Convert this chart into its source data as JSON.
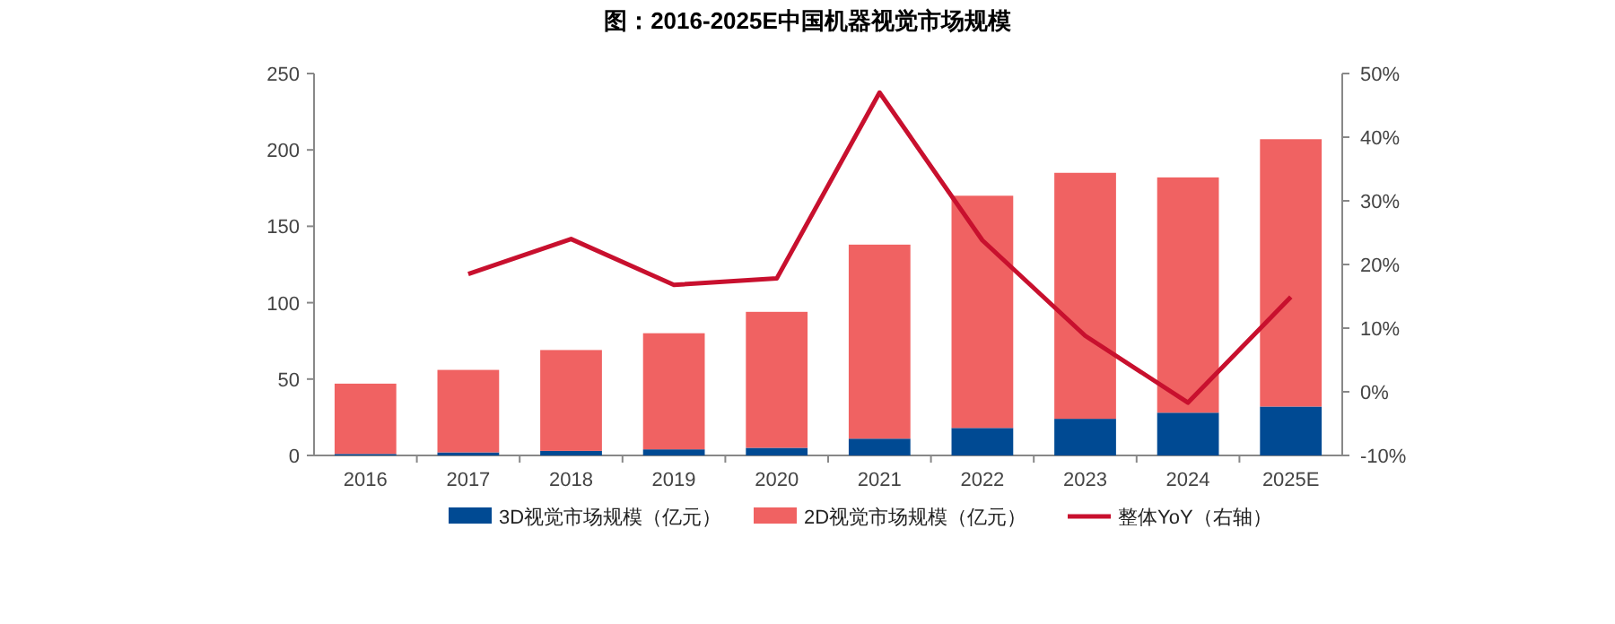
{
  "chart_data": {
    "type": "bar",
    "title": "图：2016-2025E中国机器视觉市场规模",
    "categories": [
      "2016",
      "2017",
      "2018",
      "2019",
      "2020",
      "2021",
      "2022",
      "2023",
      "2024",
      "2025E"
    ],
    "stacked": true,
    "series": [
      {
        "name": "3D视觉市场规模（亿元）",
        "color": "#004a93",
        "values": [
          1,
          2,
          3,
          4,
          5,
          11,
          18,
          24,
          28,
          32
        ]
      },
      {
        "name": "2D视觉市场规模（亿元）",
        "color": "#f06262",
        "values": [
          46,
          54,
          66,
          76,
          89,
          127,
          152,
          161,
          154,
          175
        ]
      },
      {
        "name": "整体YoY（右轴）",
        "type": "line",
        "axis": "y2",
        "color": "#c8102e",
        "values": [
          null,
          18.5,
          24,
          16.8,
          17.8,
          47,
          23.8,
          8.8,
          -1.7,
          14.9
        ]
      }
    ],
    "ylim": [
      0,
      250
    ],
    "yticks": [
      0,
      50,
      100,
      150,
      200,
      250
    ],
    "y2lim": [
      -10,
      50
    ],
    "y2ticks": [
      {
        "value": -10,
        "label": "-10%"
      },
      {
        "value": 0,
        "label": "0%"
      },
      {
        "value": 10,
        "label": "10%"
      },
      {
        "value": 20,
        "label": "20%"
      },
      {
        "value": 30,
        "label": "30%"
      },
      {
        "value": 40,
        "label": "40%"
      },
      {
        "value": 50,
        "label": "50%"
      }
    ],
    "legend": "bottom"
  }
}
